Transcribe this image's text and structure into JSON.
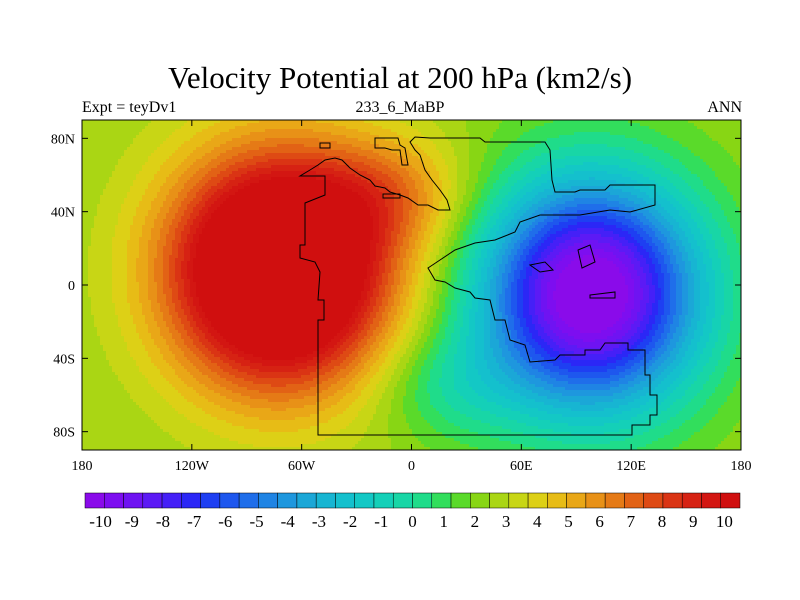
{
  "chart_data": {
    "type": "heatmap",
    "title": "Velocity Potential at 200 hPa (km2/s)",
    "subtitle_left": "Expt = teyDv1",
    "subtitle_center": "233_6_MaBP",
    "subtitle_right": "ANN",
    "x_range": [
      -180,
      180
    ],
    "y_range": [
      -90,
      90
    ],
    "x_ticks": [
      {
        "value": -180,
        "label": "180"
      },
      {
        "value": -120,
        "label": "120W"
      },
      {
        "value": -60,
        "label": "60W"
      },
      {
        "value": 0,
        "label": "0"
      },
      {
        "value": 60,
        "label": "60E"
      },
      {
        "value": 120,
        "label": "120E"
      },
      {
        "value": 180,
        "label": "180"
      }
    ],
    "y_ticks": [
      {
        "value": 80,
        "label": "80N"
      },
      {
        "value": 40,
        "label": "40N"
      },
      {
        "value": 0,
        "label": "0"
      },
      {
        "value": -40,
        "label": "40S"
      },
      {
        "value": -80,
        "label": "80S"
      }
    ],
    "colorbar": {
      "min": -10.5,
      "max": 10.5,
      "step": 0.5,
      "labels": [
        "-10",
        "-9",
        "-8",
        "-7",
        "-6",
        "-5",
        "-4",
        "-3",
        "-2",
        "-1",
        "0",
        "1",
        "2",
        "3",
        "4",
        "5",
        "6",
        "7",
        "8",
        "9",
        "10"
      ],
      "colors": [
        "#8a0bea",
        "#7d0ef0",
        "#6f13f2",
        "#5c1af5",
        "#4520f7",
        "#2b27f6",
        "#1e3ff2",
        "#1e57ee",
        "#1f6eea",
        "#1f84e4",
        "#1e97de",
        "#1ba7d7",
        "#17b5d2",
        "#14c0cd",
        "#13c8c5",
        "#14d0b8",
        "#18d6a6",
        "#1fdc8a",
        "#32de5c",
        "#5ada2a",
        "#88d614",
        "#aad614",
        "#c8d615",
        "#ddd016",
        "#e7bc16",
        "#e9a717",
        "#e89117",
        "#e57a16",
        "#e26215",
        "#de4a14",
        "#da3414",
        "#d62213",
        "#d31612",
        "#d00f0f"
      ]
    },
    "fields": {
      "max_center": {
        "lon": -72,
        "lat": 8,
        "value": 10
      },
      "min_center": {
        "lon": 98,
        "lat": -5,
        "value": -10
      }
    }
  }
}
